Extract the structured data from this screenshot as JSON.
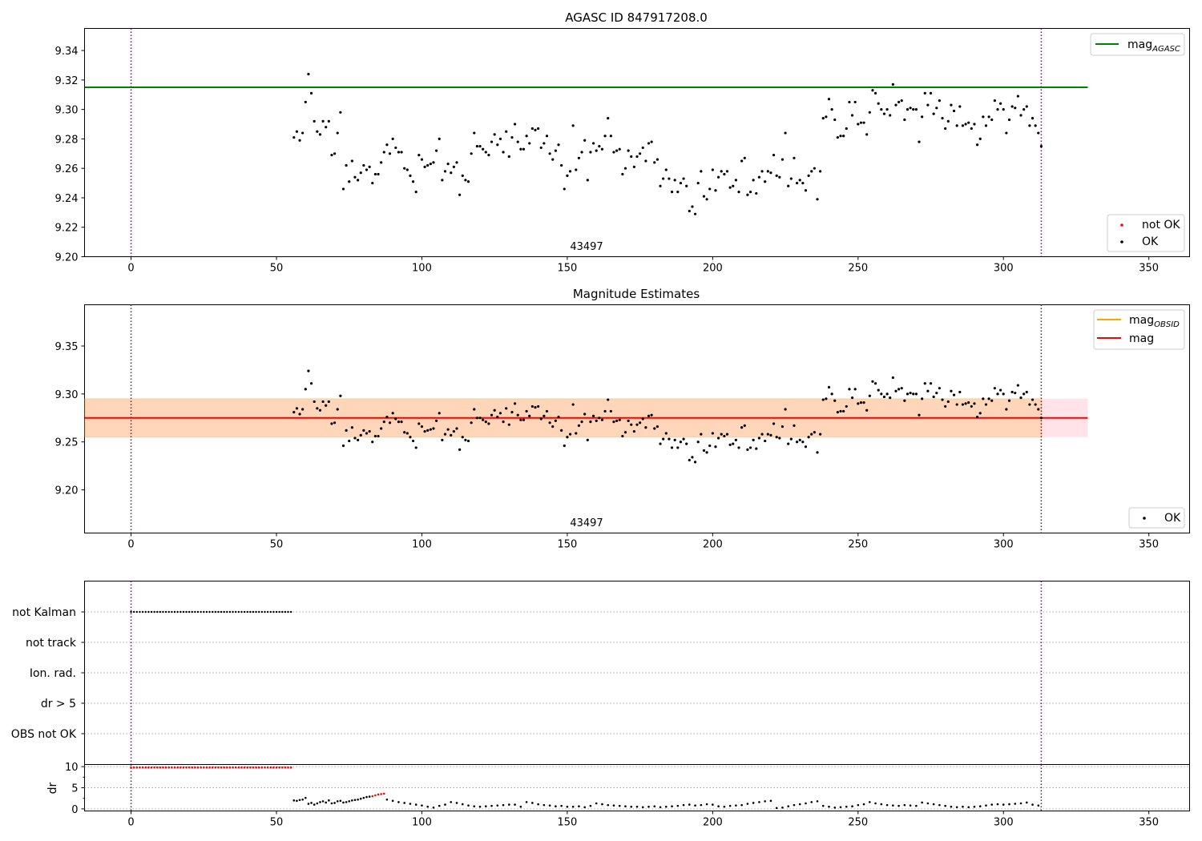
{
  "chart_data": [
    {
      "type": "scatter",
      "title": "AGASC ID 847917208.0",
      "xlim": [
        -16,
        364
      ],
      "ylim": [
        9.2,
        9.355
      ],
      "xticks": [
        0,
        50,
        100,
        150,
        200,
        250,
        300,
        350
      ],
      "yticks": [
        9.2,
        9.22,
        9.24,
        9.26,
        9.28,
        9.3,
        9.32,
        9.34
      ],
      "hlines": [
        {
          "y": 9.315,
          "xmin": -16,
          "xmax": 329,
          "color": "#008000"
        }
      ],
      "vlines": [
        0,
        313
      ],
      "annotations": [
        {
          "text": "43497",
          "x": 156.5
        }
      ],
      "legend_top": {
        "position": "top-right",
        "entries": [
          {
            "type": "line",
            "label": "mag",
            "sub": "AGASC",
            "color": "#008000"
          }
        ]
      },
      "legend_bottom": {
        "position": "bottom-right",
        "entries": [
          {
            "type": "dot",
            "label": "not OK",
            "color": "#ff0000"
          },
          {
            "type": "dot",
            "label": "OK",
            "color": "#000000"
          }
        ]
      },
      "series": [
        {
          "name": "OK",
          "source": "mag_points"
        }
      ]
    },
    {
      "type": "scatter",
      "title": "Magnitude Estimates",
      "xlim": [
        -16,
        364
      ],
      "ylim": [
        9.155,
        9.393
      ],
      "xticks": [
        0,
        50,
        100,
        150,
        200,
        250,
        300,
        350
      ],
      "yticks": [
        9.2,
        9.25,
        9.3,
        9.35
      ],
      "band": {
        "ymin": 9.255,
        "ymax": 9.295,
        "xmin": -16,
        "xmax": 329
      },
      "hlines": [
        {
          "y": 9.275,
          "xmin": -16,
          "xmax": 329,
          "color": "#ff0000"
        }
      ],
      "vlines": [
        0,
        313
      ],
      "annotations": [
        {
          "text": "43497",
          "x": 156.5
        }
      ],
      "legend_top": {
        "position": "top-right",
        "entries": [
          {
            "type": "line",
            "label": "mag",
            "sub": "OBSID",
            "color": "#ffa500"
          },
          {
            "type": "line",
            "label": "mag",
            "sub": "",
            "color": "#ff0000"
          }
        ]
      },
      "legend_bottom": {
        "position": "bottom-right",
        "entries": [
          {
            "type": "dot",
            "label": "OK",
            "color": "#000000"
          }
        ]
      },
      "series": [
        {
          "name": "OK",
          "source": "mag_points"
        }
      ]
    },
    {
      "type": "scatter",
      "title": "",
      "xlim": [
        -16,
        364
      ],
      "ylim": [
        0,
        6
      ],
      "flag_labels": [
        "not Kalman",
        "not track",
        "Ion. rad.",
        "dr > 5",
        "OBS not OK"
      ],
      "not_kalman_x": [
        0,
        55
      ],
      "vlines": [
        0,
        313
      ]
    },
    {
      "type": "scatter",
      "title": "",
      "ylabel": "dr",
      "xlim": [
        -16,
        364
      ],
      "ylim": [
        -0.5,
        10.5
      ],
      "xticks": [
        0,
        50,
        100,
        150,
        200,
        250,
        300,
        350
      ],
      "yticks": [
        0,
        5,
        10
      ],
      "vlines": [
        0,
        313
      ],
      "saturated_red": {
        "x": [
          0,
          55
        ],
        "y": 9.8
      },
      "series": [
        {
          "color": "#000000",
          "x": [
            56,
            57,
            58,
            59,
            60,
            61,
            62,
            63,
            64,
            65,
            66,
            67,
            68,
            69,
            70,
            71,
            72,
            73,
            74,
            75,
            76,
            77,
            78,
            79,
            80,
            81,
            82
          ],
          "y": [
            2.0,
            1.9,
            2.1,
            2.2,
            2.6,
            1.2,
            1.4,
            1.0,
            1.3,
            1.6,
            1.8,
            1.5,
            2.0,
            1.3,
            1.4,
            1.8,
            1.9,
            1.5,
            1.6,
            1.8,
            2.0,
            2.1,
            2.2,
            2.4,
            2.6,
            2.8,
            2.9
          ]
        },
        {
          "color": "#ff0000",
          "x": [
            83,
            84,
            85,
            86,
            87
          ],
          "y": [
            3.0,
            3.2,
            3.4,
            3.5,
            3.6
          ]
        },
        {
          "color": "#000000",
          "x": [
            88,
            90,
            92,
            94,
            96,
            98,
            100,
            102,
            104,
            106,
            108,
            110,
            112,
            114,
            116,
            118,
            120,
            122,
            124,
            126,
            128,
            130,
            132,
            134,
            136,
            138,
            140,
            142,
            144,
            146,
            148,
            150,
            152,
            154,
            156,
            158,
            160,
            162,
            164,
            166,
            168,
            170,
            172,
            174,
            176,
            178,
            180,
            182,
            184,
            186,
            188,
            190,
            192,
            194,
            196,
            198,
            200,
            202,
            204,
            206,
            208,
            210,
            212,
            214,
            216,
            218,
            220,
            222,
            224,
            226,
            228,
            230,
            232,
            234,
            236,
            238,
            240,
            242,
            244,
            246,
            248,
            250,
            252,
            254,
            256,
            258,
            260,
            262,
            264,
            266,
            268,
            270,
            272,
            274,
            276,
            278,
            280,
            282,
            284,
            286,
            288,
            290,
            292,
            294,
            296,
            298,
            300,
            302,
            304,
            306,
            308,
            310,
            312
          ],
          "y": [
            2.2,
            1.9,
            1.6,
            1.4,
            1.2,
            1.0,
            0.8,
            0.5,
            0.3,
            0.7,
            1.0,
            1.6,
            1.4,
            1.1,
            0.8,
            0.6,
            0.5,
            0.6,
            0.7,
            0.8,
            0.9,
            1.0,
            1.0,
            0.5,
            1.6,
            1.4,
            1.1,
            0.9,
            0.8,
            0.6,
            0.7,
            0.5,
            0.5,
            0.6,
            0.4,
            0.7,
            1.3,
            1.1,
            0.9,
            0.8,
            0.7,
            0.6,
            0.5,
            0.5,
            0.4,
            0.5,
            0.6,
            0.4,
            0.5,
            0.6,
            0.7,
            0.9,
            1.0,
            0.8,
            0.9,
            1.1,
            1.0,
            0.6,
            0.5,
            0.7,
            0.8,
            0.9,
            1.2,
            1.4,
            1.6,
            1.8,
            1.9,
            0.2,
            0.3,
            0.6,
            0.9,
            1.1,
            1.3,
            1.6,
            1.8,
            0.7,
            0.5,
            0.3,
            0.4,
            0.5,
            0.6,
            0.9,
            1.1,
            1.6,
            1.3,
            1.1,
            0.9,
            0.8,
            0.7,
            0.9,
            0.8,
            0.7,
            1.5,
            1.3,
            1.1,
            0.9,
            0.7,
            0.5,
            0.4,
            0.5,
            0.4,
            0.5,
            0.6,
            0.8,
            1.0,
            1.1,
            1.0,
            1.1,
            1.2,
            1.3,
            1.5,
            1.0,
            0.8
          ]
        }
      ]
    }
  ],
  "mag_points": {
    "x": [
      56,
      57,
      58,
      59,
      60,
      61,
      62,
      63,
      64,
      65,
      66,
      67,
      68,
      69,
      70,
      71,
      72,
      73,
      74,
      75,
      76,
      77,
      78,
      79,
      80,
      81,
      82,
      83,
      84,
      85,
      86,
      87,
      88,
      89,
      90,
      91,
      92,
      93,
      94,
      95,
      96,
      97,
      98,
      99,
      100,
      101,
      102,
      103,
      104,
      105,
      106,
      107,
      108,
      109,
      110,
      111,
      112,
      113,
      114,
      115,
      116,
      117,
      118,
      119,
      120,
      121,
      122,
      123,
      124,
      125,
      126,
      127,
      128,
      129,
      130,
      131,
      132,
      133,
      134,
      135,
      136,
      137,
      138,
      139,
      140,
      141,
      142,
      143,
      144,
      145,
      146,
      147,
      148,
      149,
      150,
      151,
      152,
      153,
      154,
      155,
      156,
      157,
      158,
      159,
      160,
      161,
      162,
      163,
      164,
      165,
      166,
      167,
      168,
      169,
      170,
      171,
      172,
      173,
      174,
      175,
      176,
      177,
      178,
      179,
      180,
      181,
      182,
      183,
      184,
      185,
      186,
      187,
      188,
      189,
      190,
      191,
      192,
      193,
      194,
      195,
      196,
      197,
      198,
      199,
      200,
      201,
      202,
      203,
      204,
      205,
      206,
      207,
      208,
      209,
      210,
      211,
      212,
      213,
      214,
      215,
      216,
      217,
      218,
      219,
      220,
      221,
      222,
      223,
      224,
      225,
      226,
      227,
      228,
      229,
      230,
      231,
      232,
      233,
      234,
      235,
      236,
      237,
      238,
      239,
      240,
      241,
      242,
      243,
      244,
      245,
      246,
      247,
      248,
      249,
      250,
      251,
      252,
      253,
      254,
      255,
      256,
      257,
      258,
      259,
      260,
      261,
      262,
      263,
      264,
      265,
      266,
      267,
      268,
      269,
      270,
      271,
      272,
      273,
      274,
      275,
      276,
      277,
      278,
      279,
      280,
      281,
      282,
      283,
      284,
      285,
      286,
      287,
      288,
      289,
      290,
      291,
      292,
      293,
      294,
      295,
      296,
      297,
      298,
      299,
      300,
      301,
      302,
      303,
      304,
      305,
      306,
      307,
      308,
      309,
      310,
      311,
      312,
      313
    ],
    "y": [
      9.281,
      9.285,
      9.279,
      9.284,
      9.305,
      9.324,
      9.311,
      9.292,
      9.285,
      9.283,
      9.292,
      9.288,
      9.292,
      9.269,
      9.27,
      9.284,
      9.298,
      9.246,
      9.262,
      9.251,
      9.265,
      9.254,
      9.252,
      9.257,
      9.262,
      9.259,
      9.261,
      9.25,
      9.256,
      9.256,
      9.264,
      9.271,
      9.276,
      9.27,
      9.28,
      9.274,
      9.271,
      9.271,
      9.26,
      9.259,
      9.255,
      9.251,
      9.244,
      9.269,
      9.266,
      9.261,
      9.262,
      9.263,
      9.264,
      9.272,
      9.28,
      9.252,
      9.258,
      9.263,
      9.257,
      9.261,
      9.264,
      9.242,
      9.255,
      9.252,
      9.251,
      9.27,
      9.284,
      9.275,
      9.275,
      9.273,
      9.271,
      9.269,
      9.278,
      9.283,
      9.276,
      9.28,
      9.271,
      9.285,
      9.268,
      9.281,
      9.29,
      9.278,
      9.273,
      9.273,
      9.282,
      9.277,
      9.287,
      9.286,
      9.287,
      9.274,
      9.277,
      9.282,
      9.27,
      9.266,
      9.272,
      9.276,
      9.262,
      9.246,
      9.255,
      9.258,
      9.289,
      9.259,
      9.267,
      9.271,
      9.279,
      9.252,
      9.271,
      9.277,
      9.272,
      9.275,
      9.273,
      9.282,
      9.294,
      9.282,
      9.271,
      9.272,
      9.273,
      9.256,
      9.26,
      9.272,
      9.268,
      9.261,
      9.268,
      9.27,
      9.274,
      9.265,
      9.277,
      9.278,
      9.264,
      9.266,
      9.248,
      9.253,
      9.259,
      9.253,
      9.244,
      9.252,
      9.244,
      9.25,
      9.253,
      9.248,
      9.231,
      9.234,
      9.229,
      9.25,
      9.258,
      9.241,
      9.239,
      9.246,
      9.259,
      9.245,
      9.254,
      9.258,
      9.256,
      9.258,
      9.247,
      9.248,
      9.252,
      9.244,
      9.265,
      9.267,
      9.242,
      9.244,
      9.252,
      9.243,
      9.254,
      9.258,
      9.251,
      9.258,
      9.257,
      9.269,
      9.255,
      9.254,
      9.266,
      9.284,
      9.248,
      9.253,
      9.267,
      9.25,
      9.252,
      9.25,
      9.245,
      9.255,
      9.258,
      9.26,
      9.239,
      9.258,
      9.294,
      9.295,
      9.307,
      9.3,
      9.293,
      9.281,
      9.282,
      9.282,
      9.287,
      9.305,
      9.296,
      9.305,
      9.29,
      9.291,
      9.291,
      9.283,
      9.298,
      9.313,
      9.311,
      9.304,
      9.3,
      9.297,
      9.3,
      9.296,
      9.317,
      9.303,
      9.305,
      9.306,
      9.293,
      9.3,
      9.301,
      9.3,
      9.3,
      9.278,
      9.295,
      9.311,
      9.303,
      9.311,
      9.297,
      9.301,
      9.306,
      9.294,
      9.287,
      9.292,
      9.303,
      9.299,
      9.289,
      9.302,
      9.289,
      9.29,
      9.291,
      9.287,
      9.29,
      9.276,
      9.28,
      9.295,
      9.289,
      9.295,
      9.293,
      9.306,
      9.3,
      9.304,
      9.3,
      9.284,
      9.293,
      9.302,
      9.301,
      9.309,
      9.296,
      9.3,
      9.302,
      9.289,
      9.294,
      9.289,
      9.284,
      9.275
    ]
  }
}
